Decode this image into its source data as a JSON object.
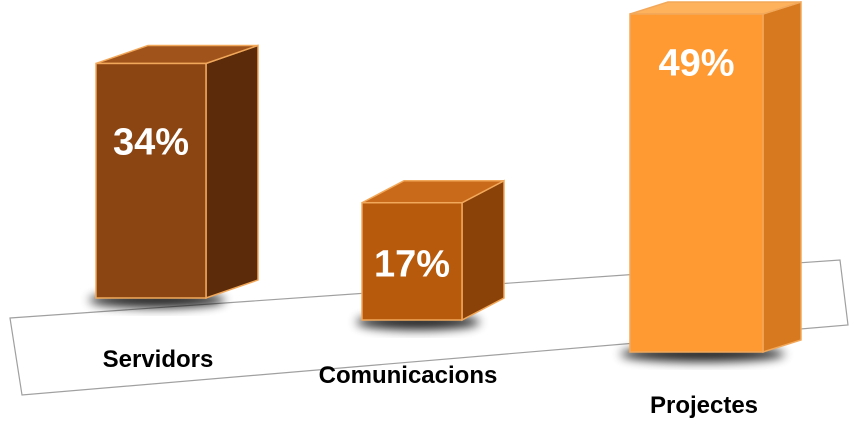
{
  "chart_data": {
    "type": "bar",
    "categories": [
      "Servidors",
      "Comunicacions",
      "Projectes"
    ],
    "values": [
      34,
      17,
      49
    ],
    "value_labels": [
      "34%",
      "17%",
      "49%"
    ],
    "unit": "%",
    "ylim": [
      0,
      49
    ],
    "style": "3d-columns",
    "grid": false,
    "legend": "none",
    "colors": {
      "servidors_front": "#8B4513",
      "servidors_side": "#5C2C0A",
      "servidors_top": "#A0541C",
      "comunicacions_front": "#B85A0C",
      "comunicacions_side": "#8A4208",
      "comunicacions_top": "#C96A1A",
      "projectes_front": "#FF9A33",
      "projectes_side": "#D7791E",
      "projectes_top": "#FFB25C",
      "edge": "#F2A85A",
      "floor": "#A0A0A0"
    }
  }
}
